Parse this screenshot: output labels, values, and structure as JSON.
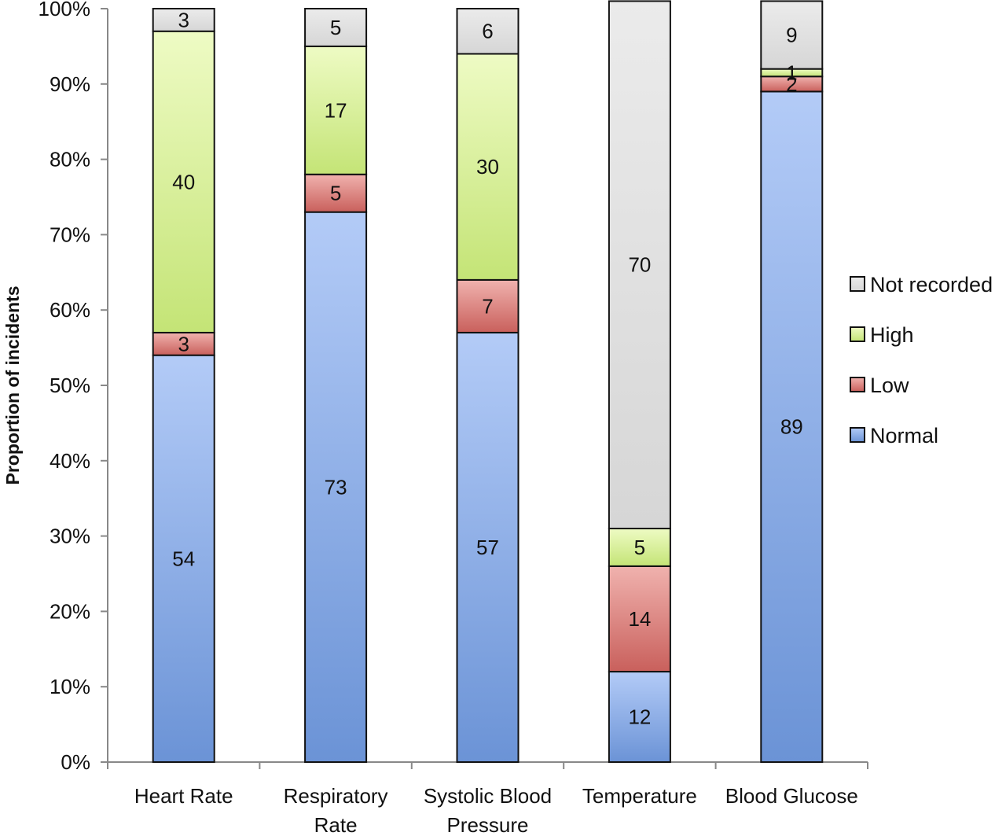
{
  "chart_data": {
    "type": "bar",
    "stacked": true,
    "percent_stacked": true,
    "title": "",
    "xlabel": "",
    "ylabel": "Proportion of incidents",
    "ylim": [
      0,
      100
    ],
    "y_ticks": [
      "0%",
      "10%",
      "20%",
      "30%",
      "40%",
      "50%",
      "60%",
      "70%",
      "80%",
      "90%",
      "100%"
    ],
    "categories": [
      "Heart Rate",
      "Respiratory Rate",
      "Systolic Blood Pressure",
      "Temperature",
      "Blood Glucose"
    ],
    "category_label_lines": [
      [
        "Heart Rate"
      ],
      [
        "Respiratory",
        "Rate"
      ],
      [
        "Systolic Blood",
        "Pressure"
      ],
      [
        "Temperature"
      ],
      [
        "Blood Glucose"
      ]
    ],
    "series": [
      {
        "name": "Normal",
        "values": [
          54,
          73,
          57,
          12,
          89
        ],
        "color": "#7da3e0",
        "label_values": [
          "54",
          "73",
          "57",
          "12",
          "89"
        ]
      },
      {
        "name": "Low",
        "values": [
          3,
          5,
          7,
          14,
          2
        ],
        "color": "#e08884",
        "label_values": [
          "3",
          "5",
          "7",
          "14",
          "2"
        ]
      },
      {
        "name": "High",
        "values": [
          40,
          17,
          30,
          5,
          1
        ],
        "color": "#d6ee92",
        "label_values": [
          "40",
          "17",
          "30",
          "5",
          "1"
        ]
      },
      {
        "name": "Not recorded",
        "values": [
          3,
          5,
          6,
          70,
          9
        ],
        "color": "#dedede",
        "label_values": [
          "3",
          "5",
          "6",
          "70",
          "9"
        ]
      }
    ],
    "legend": {
      "position": "right",
      "order": [
        "Not recorded",
        "High",
        "Low",
        "Normal"
      ]
    },
    "grid": false
  }
}
